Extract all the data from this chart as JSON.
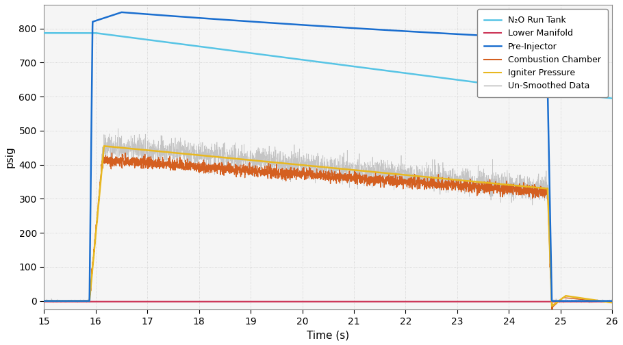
{
  "xlabel": "Time (s)",
  "ylabel": "psig",
  "xlim": [
    15,
    26
  ],
  "ylim": [
    -25,
    870
  ],
  "yticks": [
    0,
    100,
    200,
    300,
    400,
    500,
    600,
    700,
    800
  ],
  "xticks": [
    15,
    16,
    17,
    18,
    19,
    20,
    21,
    22,
    23,
    24,
    25,
    26
  ],
  "bg_color": "#ffffff",
  "plot_bg": "#f5f5f5",
  "grid_color": "#cccccc",
  "colors": {
    "n2o_tank": "#57c4e5",
    "lower_manifold": "#cc3355",
    "pre_injector": "#1a6ecf",
    "combustion": "#d45f20",
    "igniter": "#e8b820",
    "unsmoothed": "#b0b0b0"
  },
  "legend_labels": [
    "N₂O Run Tank",
    "Lower Manifold",
    "Pre-Injector",
    "Combustion Chamber",
    "Igniter Pressure",
    "Un-Smoothed Data"
  ],
  "t_start": 15.0,
  "t_rise": 15.88,
  "t_ignition": 16.0,
  "t_end": 24.75,
  "t_final": 26.0
}
